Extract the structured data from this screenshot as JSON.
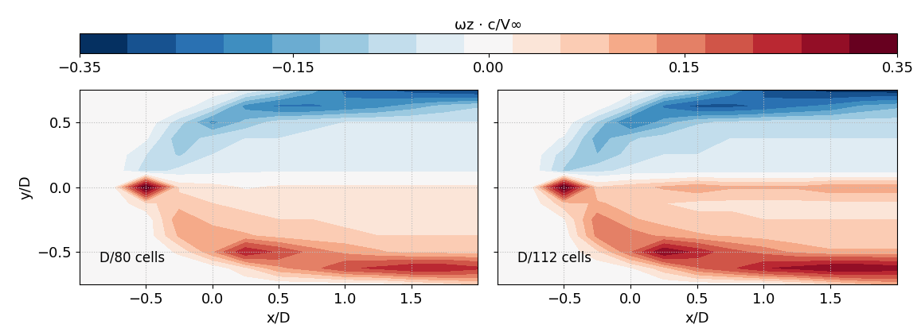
{
  "colorbar": {
    "label": "ωz · c/V∞",
    "levels": [
      -0.35,
      -0.3,
      -0.255,
      -0.21,
      -0.165,
      -0.13,
      -0.095,
      -0.06,
      -0.025,
      0.025,
      0.06,
      0.095,
      0.13,
      0.165,
      0.21,
      0.255,
      0.3,
      0.35
    ],
    "ticks": [
      {
        "value": -0.35,
        "label": "−0.35"
      },
      {
        "value": -0.15,
        "label": "−0.15"
      },
      {
        "value": 0.0,
        "label": "0.00"
      },
      {
        "value": 0.15,
        "label": "0.15"
      },
      {
        "value": 0.35,
        "label": "0.35"
      }
    ]
  },
  "chart_data": [
    {
      "type": "contour",
      "annotation": "D/80 cells",
      "xlabel": "x/D",
      "ylabel": "y/D",
      "xlim": [
        -1.0,
        2.0
      ],
      "ylim": [
        -0.75,
        0.75
      ],
      "xticks": [
        {
          "value": -0.5,
          "label": "−0.5"
        },
        {
          "value": 0.0,
          "label": "0.0"
        },
        {
          "value": 0.5,
          "label": "0.5"
        },
        {
          "value": 1.0,
          "label": "1.0"
        },
        {
          "value": 1.5,
          "label": "1.5"
        }
      ],
      "yticks": [
        {
          "value": -0.5,
          "label": "−0.5"
        },
        {
          "value": 0.0,
          "label": "0.0"
        },
        {
          "value": 0.5,
          "label": "0.5"
        }
      ],
      "grid": true,
      "x": [
        -1.0,
        -0.75,
        -0.5,
        -0.25,
        0.0,
        0.25,
        0.5,
        0.75,
        1.0,
        1.25,
        1.5,
        1.75,
        2.0
      ],
      "y": [
        -0.75,
        -0.625,
        -0.5,
        -0.375,
        -0.25,
        -0.125,
        0.0,
        0.125,
        0.25,
        0.375,
        0.5,
        0.625,
        0.75
      ],
      "cells": [
        [
          0,
          0,
          0,
          0,
          0,
          0,
          0,
          0,
          0,
          0,
          0.02,
          0.04,
          0.06
        ],
        [
          0,
          0,
          0,
          0,
          0,
          0.05,
          0.12,
          0.15,
          0.2,
          0.22,
          0.25,
          0.25,
          0.22
        ],
        [
          0,
          0,
          0,
          0.03,
          0.12,
          0.25,
          0.2,
          0.15,
          0.12,
          0.1,
          0.08,
          0.08,
          0.08
        ],
        [
          0,
          0,
          0,
          0.1,
          0.12,
          0.1,
          0.08,
          0.07,
          0.07,
          0.06,
          0.06,
          0.06,
          0.06
        ],
        [
          0,
          0,
          0,
          0.12,
          0.08,
          0.07,
          0.06,
          0.06,
          0.05,
          0.05,
          0.05,
          0.05,
          0.05
        ],
        [
          0,
          0,
          0.05,
          0.08,
          0.06,
          0.05,
          0.05,
          0.05,
          0.04,
          0.04,
          0.04,
          0.04,
          0.04
        ],
        [
          0,
          0,
          0.35,
          0.05,
          0.04,
          0.02,
          0.03,
          0.03,
          0.03,
          0.03,
          0.03,
          0.03,
          0.03
        ],
        [
          0,
          0,
          -0.08,
          -0.05,
          -0.04,
          -0.03,
          -0.03,
          -0.03,
          -0.03,
          -0.03,
          -0.03,
          -0.03,
          -0.03
        ],
        [
          0,
          0,
          -0.06,
          -0.1,
          -0.06,
          -0.05,
          -0.05,
          -0.04,
          -0.04,
          -0.04,
          -0.04,
          -0.04,
          -0.04
        ],
        [
          0,
          0,
          -0.02,
          -0.12,
          -0.08,
          -0.06,
          -0.06,
          -0.05,
          -0.05,
          -0.05,
          -0.05,
          -0.05,
          -0.05
        ],
        [
          0,
          0,
          0,
          -0.08,
          -0.18,
          -0.12,
          -0.08,
          -0.07,
          -0.06,
          -0.06,
          -0.06,
          -0.06,
          -0.06
        ],
        [
          0,
          0,
          0,
          0,
          -0.06,
          -0.18,
          -0.22,
          -0.22,
          -0.2,
          -0.18,
          -0.15,
          -0.12,
          -0.1
        ],
        [
          0,
          0,
          0,
          0,
          0,
          -0.03,
          -0.08,
          -0.15,
          -0.22,
          -0.25,
          -0.28,
          -0.3,
          -0.32
        ]
      ]
    },
    {
      "type": "contour",
      "annotation": "D/112 cells",
      "xlabel": "x/D",
      "tick_labels": "x",
      "xlim": [
        -1.0,
        2.0
      ],
      "ylim": [
        -0.75,
        0.75
      ],
      "xticks": [
        {
          "value": -0.5,
          "label": "−0.5"
        },
        {
          "value": 0.0,
          "label": "0.0"
        },
        {
          "value": 0.5,
          "label": "0.5"
        },
        {
          "value": 1.0,
          "label": "1.0"
        },
        {
          "value": 1.5,
          "label": "1.5"
        }
      ],
      "yticks": [
        -0.5,
        0.0,
        0.5
      ],
      "grid": true,
      "x": [
        -1.0,
        -0.75,
        -0.5,
        -0.25,
        0.0,
        0.25,
        0.5,
        0.75,
        1.0,
        1.25,
        1.5,
        1.75,
        2.0
      ],
      "y": [
        -0.75,
        -0.625,
        -0.5,
        -0.375,
        -0.25,
        -0.125,
        0.0,
        0.125,
        0.25,
        0.375,
        0.5,
        0.625,
        0.75
      ],
      "cells": [
        [
          0,
          0,
          0,
          0,
          0,
          0,
          0,
          0,
          0,
          0.02,
          0.05,
          0.08,
          0.1
        ],
        [
          0,
          0,
          0,
          0,
          0.02,
          0.08,
          0.16,
          0.2,
          0.25,
          0.27,
          0.3,
          0.3,
          0.28
        ],
        [
          0,
          0,
          0,
          0.05,
          0.16,
          0.3,
          0.24,
          0.18,
          0.15,
          0.12,
          0.1,
          0.1,
          0.1
        ],
        [
          0,
          0,
          0,
          0.14,
          0.15,
          0.12,
          0.1,
          0.09,
          0.08,
          0.07,
          0.07,
          0.07,
          0.07
        ],
        [
          0,
          0,
          0.02,
          0.15,
          0.1,
          0.08,
          0.07,
          0.07,
          0.06,
          0.06,
          0.06,
          0.06,
          0.06
        ],
        [
          0,
          0,
          0.08,
          0.1,
          0.08,
          0.06,
          0.05,
          0.05,
          0.05,
          0.05,
          0.05,
          0.05,
          0.05
        ],
        [
          0,
          0,
          0.35,
          0.06,
          0.08,
          0.1,
          0.12,
          0.1,
          0.1,
          0.1,
          0.12,
          0.12,
          0.12
        ],
        [
          0,
          0,
          -0.1,
          -0.07,
          -0.05,
          -0.05,
          -0.04,
          -0.04,
          -0.04,
          -0.04,
          -0.04,
          -0.04,
          -0.04
        ],
        [
          0,
          0,
          -0.08,
          -0.13,
          -0.08,
          -0.06,
          -0.06,
          -0.05,
          -0.05,
          -0.05,
          -0.05,
          -0.05,
          -0.05
        ],
        [
          0,
          0,
          -0.03,
          -0.15,
          -0.1,
          -0.08,
          -0.07,
          -0.06,
          -0.06,
          -0.06,
          -0.06,
          -0.06,
          -0.06
        ],
        [
          0,
          0,
          0,
          -0.1,
          -0.22,
          -0.15,
          -0.1,
          -0.09,
          -0.08,
          -0.08,
          -0.08,
          -0.08,
          -0.08
        ],
        [
          0,
          0,
          0,
          0,
          -0.08,
          -0.22,
          -0.27,
          -0.27,
          -0.25,
          -0.22,
          -0.2,
          -0.16,
          -0.14
        ],
        [
          0,
          0,
          0,
          0,
          0,
          -0.05,
          -0.1,
          -0.18,
          -0.26,
          -0.3,
          -0.32,
          -0.33,
          -0.34
        ]
      ]
    }
  ]
}
